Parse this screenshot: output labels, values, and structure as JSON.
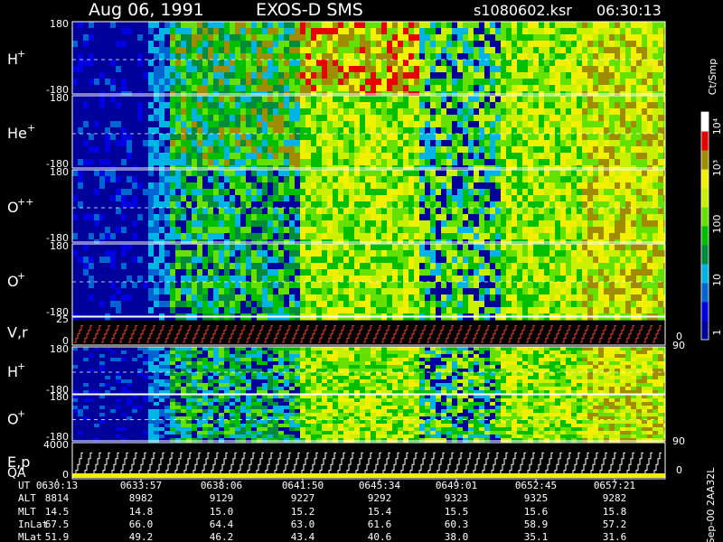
{
  "header": {
    "date": "Aug 06, 1991",
    "instrument": "EXOS-D SMS",
    "filename": "s1080602.ksr",
    "time": "06:30:13"
  },
  "panels": [
    {
      "id": "h-plus",
      "label": "H",
      "sup": "+",
      "ymax": "180",
      "ymin": "-180"
    },
    {
      "id": "he-plus",
      "label": "He",
      "sup": "+",
      "ymax": "180",
      "ymin": "-180"
    },
    {
      "id": "o-plus-plus",
      "label": "O",
      "sup": "++",
      "ymax": "180",
      "ymin": "-180"
    },
    {
      "id": "o-plus",
      "label": "O",
      "sup": "+",
      "ymax": "180",
      "ymin": "-180"
    },
    {
      "id": "vr",
      "label": "V,r",
      "sup": "",
      "ymax": "25",
      "ymin": "0",
      "right_max": "90",
      "right_min": "0"
    },
    {
      "id": "h-plus-2",
      "label": "H",
      "sup": "+",
      "ymax": "180",
      "ymin": "-180"
    },
    {
      "id": "o-plus-2",
      "label": "O",
      "sup": "+",
      "ymax": "180",
      "ymin": "-180",
      "right_max": "90"
    },
    {
      "id": "ep-qa",
      "label": "E,p",
      "label2": "QA",
      "ymax": "4000",
      "ymin": "0",
      "right_min": "0"
    }
  ],
  "colorbar": {
    "unit": "Ct/Smp",
    "ticks": [
      "1",
      "10",
      "100",
      "10³",
      "10⁴"
    ],
    "colors": [
      "#00009b",
      "#0000e1",
      "#0064d2",
      "#00b4e6",
      "#008c3c",
      "#00be00",
      "#64e100",
      "#c8f000",
      "#f0f000",
      "#a08c00",
      "#e60000",
      "#ffffff"
    ]
  },
  "footer_note": "Sep-00 2AA32L",
  "chart_data": {
    "type": "heatmap",
    "x_axis": [
      "0630:13",
      "0633:57",
      "0638:06",
      "0641:50",
      "0645:34",
      "0649:01",
      "0652:45",
      "0657:21"
    ],
    "rows": [
      {
        "label": "UT",
        "values": [
          "0630:13",
          "0633:57",
          "0638:06",
          "0641:50",
          "0645:34",
          "0649:01",
          "0652:45",
          "0657:21"
        ]
      },
      {
        "label": "ALT",
        "values": [
          "8814",
          "8982",
          "9129",
          "9227",
          "9292",
          "9323",
          "9325",
          "9282"
        ]
      },
      {
        "label": "MLT",
        "values": [
          "14.5",
          "14.8",
          "15.0",
          "15.2",
          "15.4",
          "15.5",
          "15.6",
          "15.8"
        ]
      },
      {
        "label": "InLat",
        "values": [
          "67.5",
          "66.0",
          "64.4",
          "63.0",
          "61.6",
          "60.3",
          "58.9",
          "57.2"
        ]
      },
      {
        "label": "MLat",
        "values": [
          "51.9",
          "49.2",
          "46.2",
          "43.4",
          "40.6",
          "38.0",
          "35.1",
          "31.6"
        ]
      }
    ]
  }
}
